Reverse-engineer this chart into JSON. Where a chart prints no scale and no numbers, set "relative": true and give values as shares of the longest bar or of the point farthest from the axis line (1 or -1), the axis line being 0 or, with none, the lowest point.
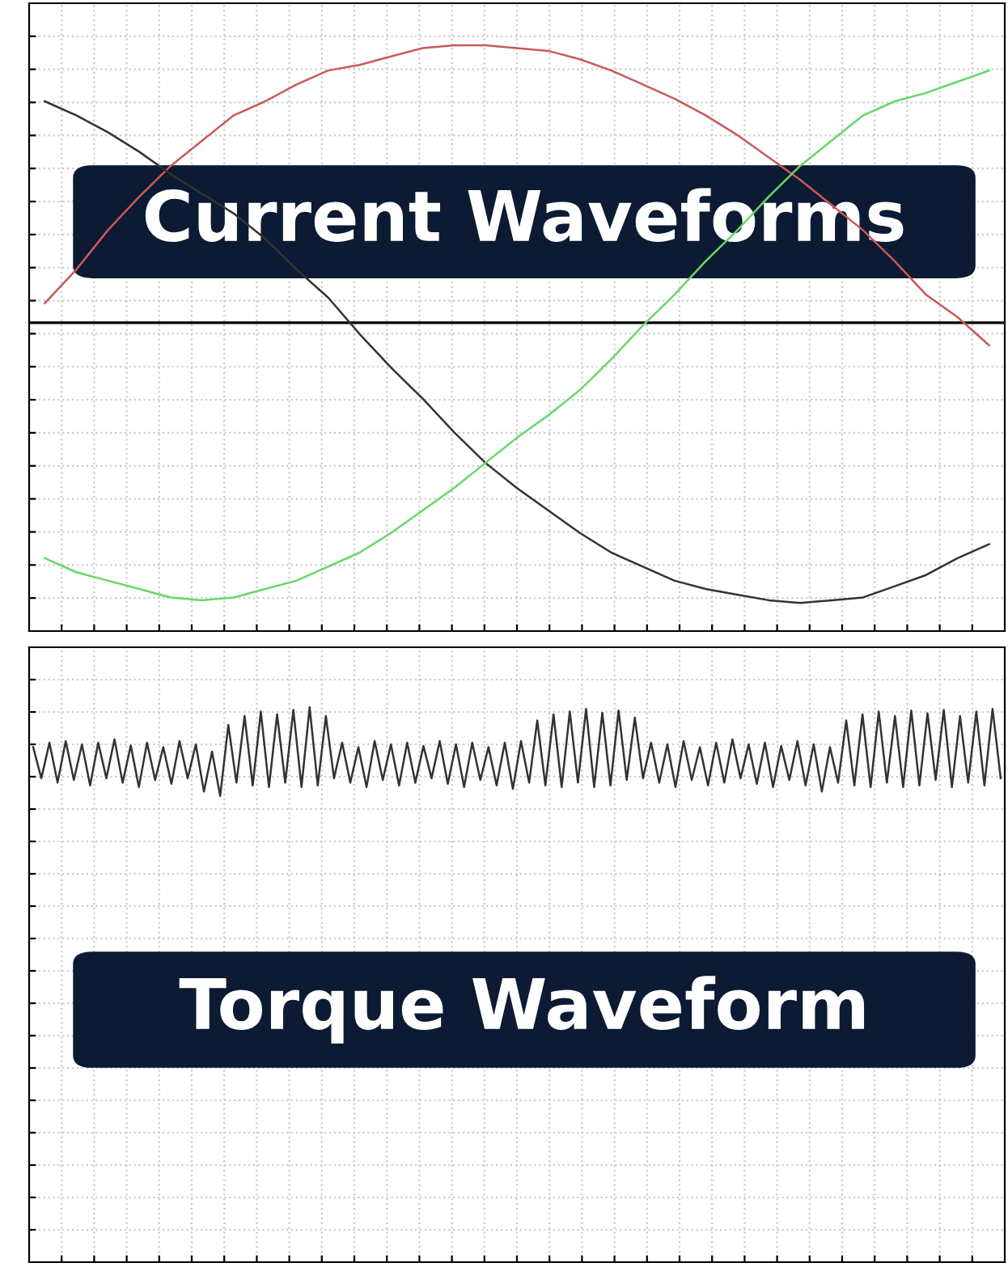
{
  "chart_data": [
    {
      "type": "line",
      "title": "Current Waveforms",
      "relative": true,
      "grid": true,
      "tick_labels": false,
      "marker": "none",
      "line_style": "solid",
      "categories": [
        null,
        null,
        null,
        null,
        null,
        null,
        null,
        null,
        null,
        null,
        null,
        null,
        null,
        null,
        null,
        null,
        null,
        null,
        null,
        null,
        null,
        null,
        null,
        null,
        null,
        null,
        null,
        null,
        null,
        null,
        null
      ],
      "series": [
        {
          "color": "#c85a5a",
          "values": [
            0.07,
            0.19,
            0.33,
            0.45,
            0.56,
            0.65,
            0.74,
            0.79,
            0.85,
            0.9,
            0.92,
            0.95,
            0.98,
            0.99,
            0.99,
            0.98,
            0.97,
            0.94,
            0.9,
            0.85,
            0.8,
            0.74,
            0.67,
            0.59,
            0.51,
            0.42,
            0.33,
            0.22,
            0.1,
            0.02,
            -0.08
          ]
        },
        {
          "color": "#333333",
          "values": [
            0.79,
            0.74,
            0.68,
            0.61,
            0.53,
            0.46,
            0.39,
            0.3,
            0.19,
            0.09,
            -0.04,
            -0.16,
            -0.27,
            -0.39,
            -0.5,
            -0.59,
            -0.67,
            -0.75,
            -0.82,
            -0.87,
            -0.92,
            -0.95,
            -0.97,
            -0.99,
            -1,
            -0.99,
            -0.98,
            -0.94,
            -0.9,
            -0.84,
            -0.79
          ]
        },
        {
          "color": "#66d966",
          "values": [
            -0.84,
            -0.89,
            -0.92,
            -0.95,
            -0.98,
            -0.99,
            -0.98,
            -0.95,
            -0.92,
            -0.87,
            -0.82,
            -0.75,
            -0.67,
            -0.59,
            -0.5,
            -0.41,
            -0.33,
            -0.24,
            -0.13,
            -0.01,
            0.1,
            0.22,
            0.33,
            0.45,
            0.56,
            0.65,
            0.74,
            0.79,
            0.82,
            0.86,
            0.9
          ]
        }
      ]
    },
    {
      "type": "line",
      "title": "Torque Waveform",
      "relative": true,
      "grid": true,
      "tick_labels": false,
      "marker": "none",
      "line_style": "solid",
      "categories": [
        null,
        null,
        null,
        null,
        null,
        null,
        null,
        null,
        null,
        null,
        null,
        null,
        null,
        null,
        null,
        null,
        null,
        null,
        null,
        null,
        null,
        null,
        null,
        null,
        null,
        null,
        null,
        null,
        null,
        null,
        null,
        null,
        null,
        null,
        null,
        null,
        null,
        null,
        null,
        null,
        null,
        null,
        null,
        null,
        null,
        null,
        null,
        null,
        null,
        null,
        null,
        null,
        null,
        null,
        null,
        null,
        null,
        null,
        null,
        null,
        null,
        null,
        null,
        null,
        null,
        null,
        null,
        null,
        null,
        null,
        null,
        null,
        null,
        null,
        null,
        null,
        null,
        null,
        null,
        null,
        null,
        null,
        null,
        null,
        null,
        null,
        null,
        null,
        null,
        null,
        null,
        null,
        null,
        null,
        null,
        null,
        null,
        null,
        null,
        null,
        null,
        null,
        null,
        null,
        null,
        null,
        null,
        null,
        null,
        null,
        null,
        null,
        null,
        null,
        null,
        null,
        null,
        null,
        null,
        null
      ],
      "series": [
        {
          "color": "#333333",
          "values": [
            0.928,
            0.872,
            0.936,
            0.864,
            0.939,
            0.869,
            0.933,
            0.859,
            0.936,
            0.872,
            0.942,
            0.864,
            0.931,
            0.856,
            0.936,
            0.869,
            0.928,
            0.862,
            0.939,
            0.872,
            0.933,
            0.848,
            0.92,
            0.84,
            0.968,
            0.864,
            0.984,
            0.859,
            0.992,
            0.856,
            0.987,
            0.864,
            0.995,
            0.856,
            1.0,
            0.859,
            0.984,
            0.872,
            0.936,
            0.864,
            0.928,
            0.856,
            0.939,
            0.869,
            0.933,
            0.859,
            0.936,
            0.864,
            0.93,
            0.872,
            0.939,
            0.862,
            0.933,
            0.856,
            0.936,
            0.869,
            0.928,
            0.859,
            0.936,
            0.853,
            0.939,
            0.864,
            0.976,
            0.859,
            0.987,
            0.856,
            0.992,
            0.864,
            0.997,
            0.856,
            0.99,
            0.859,
            0.994,
            0.869,
            0.981,
            0.872,
            0.936,
            0.864,
            0.933,
            0.856,
            0.939,
            0.869,
            0.928,
            0.859,
            0.936,
            0.864,
            0.942,
            0.872,
            0.933,
            0.862,
            0.936,
            0.856,
            0.93,
            0.869,
            0.939,
            0.859,
            0.933,
            0.848,
            0.928,
            0.864,
            0.976,
            0.859,
            0.987,
            0.856,
            0.992,
            0.864,
            0.984,
            0.856,
            0.994,
            0.859,
            0.989,
            0.869,
            0.995,
            0.856,
            0.984,
            0.864,
            0.992,
            0.859,
            0.997,
            0.872
          ]
        }
      ]
    }
  ]
}
